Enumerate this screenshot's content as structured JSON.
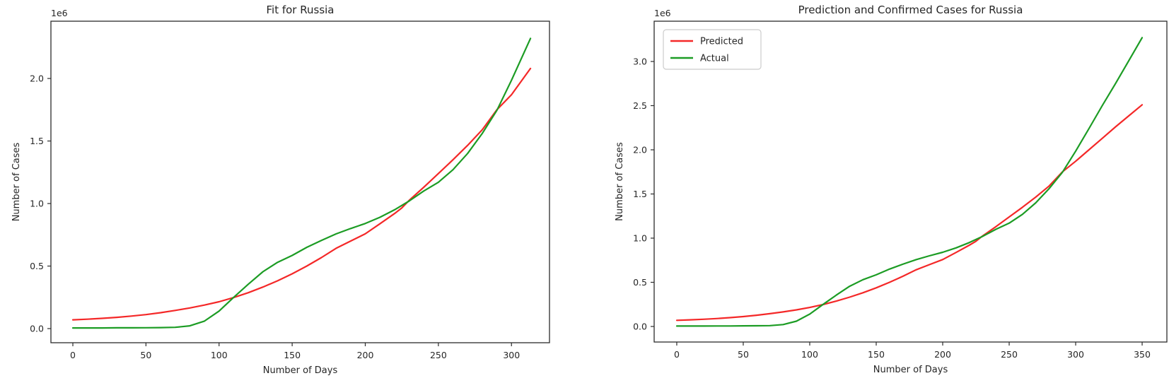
{
  "figure": {
    "background": "#ffffff",
    "spine_color": "#2b2b2b",
    "text_color": "#262626"
  },
  "chart_data": [
    {
      "type": "line",
      "title": "Fit for Russia",
      "xlabel": "Number of Days",
      "ylabel": "Number of Cases",
      "offset_label": "1e6",
      "grid": false,
      "legend": null,
      "xticks": [
        0,
        50,
        100,
        150,
        200,
        250,
        300
      ],
      "yticks": [
        0.0,
        0.5,
        1.0,
        1.5,
        2.0
      ],
      "xlim": [
        -15,
        326
      ],
      "ylim": [
        -0.113,
        2.458
      ],
      "y_unit": "1e6 cases",
      "series": [
        {
          "name": "Predicted",
          "color": "#f42828",
          "x": [
            0,
            10,
            20,
            30,
            40,
            50,
            60,
            70,
            80,
            90,
            100,
            110,
            120,
            130,
            140,
            150,
            160,
            170,
            180,
            190,
            200,
            210,
            220,
            225,
            230,
            240,
            250,
            260,
            270,
            280,
            290,
            300,
            313
          ],
          "y": [
            0.07,
            0.075,
            0.082,
            0.09,
            0.1,
            0.112,
            0.127,
            0.145,
            0.165,
            0.188,
            0.215,
            0.248,
            0.287,
            0.332,
            0.382,
            0.438,
            0.5,
            0.568,
            0.642,
            0.7,
            0.758,
            0.838,
            0.92,
            0.965,
            1.025,
            1.13,
            1.24,
            1.35,
            1.465,
            1.59,
            1.75,
            1.87,
            2.08
          ]
        },
        {
          "name": "Actual",
          "color": "#1c9c24",
          "x": [
            0,
            10,
            20,
            30,
            40,
            50,
            60,
            70,
            80,
            90,
            100,
            110,
            120,
            130,
            140,
            150,
            160,
            170,
            180,
            190,
            200,
            210,
            220,
            225,
            230,
            240,
            250,
            260,
            270,
            280,
            290,
            300,
            313
          ],
          "y": [
            0.005,
            0.005,
            0.005,
            0.006,
            0.006,
            0.007,
            0.008,
            0.01,
            0.022,
            0.06,
            0.14,
            0.25,
            0.355,
            0.455,
            0.53,
            0.585,
            0.65,
            0.705,
            0.757,
            0.8,
            0.84,
            0.89,
            0.95,
            0.985,
            1.02,
            1.1,
            1.17,
            1.27,
            1.4,
            1.56,
            1.745,
            1.985,
            2.32
          ]
        }
      ]
    },
    {
      "type": "line",
      "title": "Prediction and Confirmed Cases for Russia",
      "xlabel": "Number of Days",
      "ylabel": "Number of Cases",
      "offset_label": "1e6",
      "grid": false,
      "legend": {
        "position": "upper left",
        "entries": [
          {
            "label": "Predicted",
            "color": "#f42828"
          },
          {
            "label": "Actual",
            "color": "#1c9c24"
          }
        ]
      },
      "xticks": [
        0,
        50,
        100,
        150,
        200,
        250,
        300,
        350
      ],
      "yticks": [
        0.0,
        0.5,
        1.0,
        1.5,
        2.0,
        2.5,
        3.0
      ],
      "xlim": [
        -17,
        368.6
      ],
      "ylim": [
        -0.176,
        3.456
      ],
      "y_unit": "1e6 cases",
      "series": [
        {
          "name": "Predicted",
          "color": "#f42828",
          "x": [
            0,
            10,
            20,
            30,
            40,
            50,
            60,
            70,
            80,
            90,
            100,
            110,
            120,
            130,
            140,
            150,
            160,
            170,
            180,
            190,
            200,
            210,
            220,
            225,
            230,
            240,
            250,
            260,
            270,
            280,
            290,
            300,
            310,
            320,
            330,
            340,
            350
          ],
          "y": [
            0.07,
            0.075,
            0.082,
            0.09,
            0.1,
            0.112,
            0.127,
            0.145,
            0.165,
            0.188,
            0.215,
            0.248,
            0.287,
            0.332,
            0.382,
            0.438,
            0.5,
            0.568,
            0.642,
            0.7,
            0.758,
            0.838,
            0.92,
            0.965,
            1.025,
            1.13,
            1.24,
            1.35,
            1.465,
            1.59,
            1.75,
            1.87,
            2.0,
            2.13,
            2.26,
            2.385,
            2.51
          ]
        },
        {
          "name": "Actual",
          "color": "#1c9c24",
          "x": [
            0,
            10,
            20,
            30,
            40,
            50,
            60,
            70,
            80,
            90,
            100,
            110,
            120,
            130,
            140,
            150,
            160,
            170,
            180,
            190,
            200,
            210,
            220,
            225,
            230,
            240,
            250,
            260,
            270,
            280,
            290,
            300,
            310,
            320,
            330,
            340,
            350
          ],
          "y": [
            0.005,
            0.005,
            0.005,
            0.006,
            0.006,
            0.007,
            0.008,
            0.01,
            0.022,
            0.06,
            0.14,
            0.25,
            0.355,
            0.455,
            0.53,
            0.585,
            0.65,
            0.705,
            0.757,
            0.8,
            0.84,
            0.89,
            0.95,
            0.985,
            1.02,
            1.1,
            1.17,
            1.27,
            1.4,
            1.56,
            1.745,
            1.985,
            2.24,
            2.5,
            2.75,
            3.01,
            3.27
          ]
        }
      ]
    }
  ]
}
